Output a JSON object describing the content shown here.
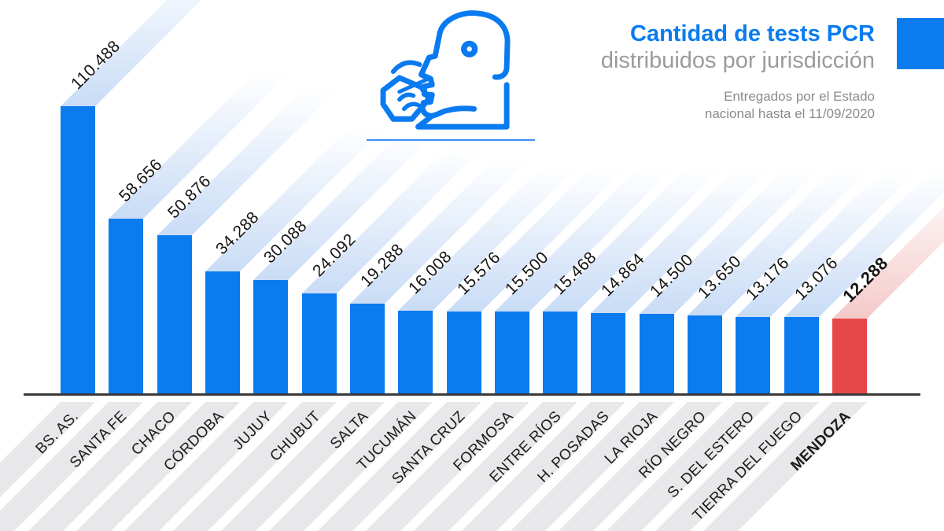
{
  "header": {
    "title_bold": "Cantidad de tests PCR",
    "title_light": "distribuidos por jurisdicción",
    "subtitle_line1": "Entregados por el Estado",
    "subtitle_line2": "nacional hasta el 11/09/2020"
  },
  "icon": {
    "name": "nasal-swab-test-icon"
  },
  "colors": {
    "bar_blue": "#0b7bf0",
    "bar_red": "#e64747",
    "ribbon_blue": "#c9dcf6",
    "ribbon_red": "#f4caca",
    "band_gray": "#e8e8eb",
    "axis": "#3a3a3a",
    "title_blue": "#0a7cf0",
    "title_gray": "#9b9b9b",
    "subtitle_gray": "#8b8b8b",
    "corner_square": "#0a7cf0"
  },
  "chart_data": {
    "type": "bar",
    "orientation": "vertical",
    "title": "Cantidad de tests PCR distribuidos por jurisdicción",
    "subtitle": "Entregados por el Estado nacional hasta el 11/09/2020",
    "grid": false,
    "legend": false,
    "categories": [
      "BS. AS.",
      "SANTA FE",
      "CHACO",
      "CÓRDOBA",
      "JUJUY",
      "CHUBUT",
      "SALTA",
      "TUCUMÁN",
      "SANTA CRUZ",
      "FORMOSA",
      "ENTRE RÍOS",
      "H. POSADAS",
      "LA RIOJA",
      "RÍO NEGRO",
      "S. DEL ESTERO",
      "TIERRA DEL FUEGO",
      "MENDOZA"
    ],
    "values": [
      110488,
      58656,
      50876,
      34288,
      30088,
      24092,
      19288,
      16008,
      15576,
      15500,
      15468,
      14864,
      14500,
      13650,
      13176,
      13076,
      12288
    ],
    "value_labels": [
      "110.488",
      "58.656",
      "50.876",
      "34.288",
      "30.088",
      "24.092",
      "19.288",
      "16.008",
      "15.576",
      "15.500",
      "15.468",
      "14.864",
      "14.500",
      "13.650",
      "13.176",
      "13.076",
      "12.288"
    ],
    "highlight_category": "MENDOZA",
    "bar_color": "#0b7bf0",
    "highlight_color": "#e64747"
  }
}
